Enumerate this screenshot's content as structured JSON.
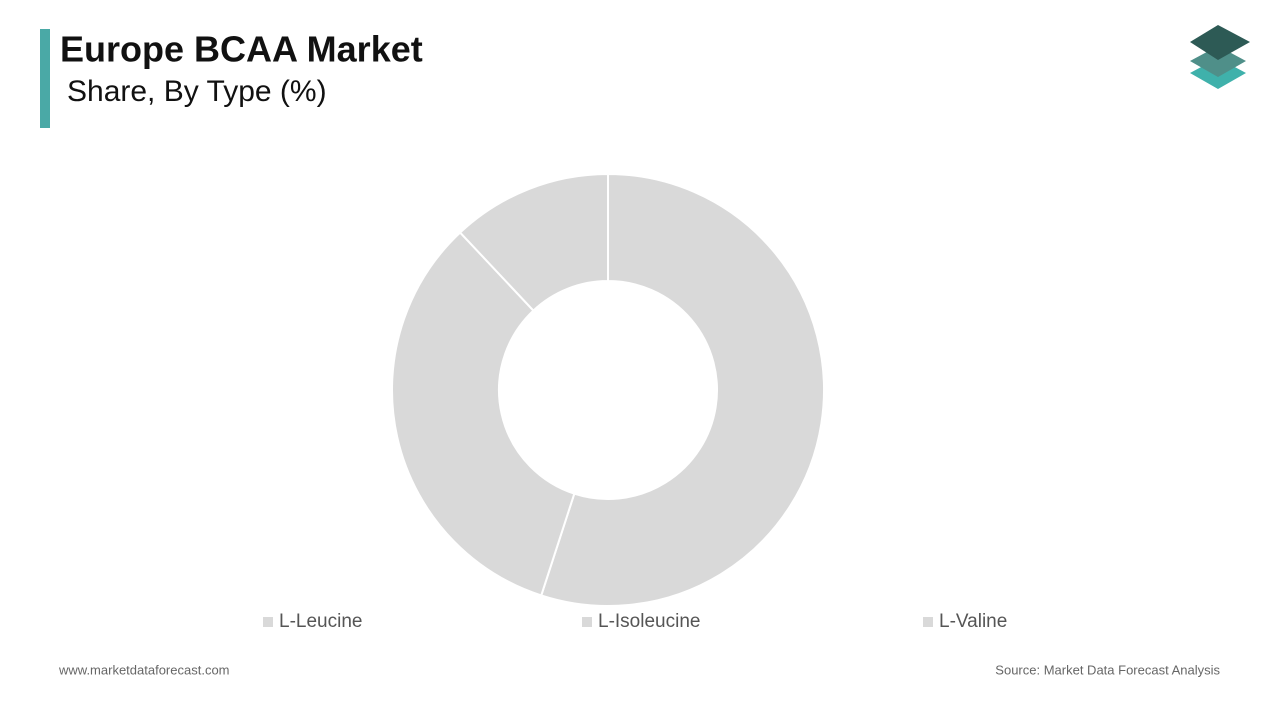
{
  "chart_data": {
    "type": "donut",
    "title": "Europe BCAA Market",
    "subtitle": "Share, By Type (%)",
    "categories": [
      "L-Leucine",
      "L-Isoleucine",
      "L-Valine"
    ],
    "values": [
      55,
      33,
      12
    ],
    "colors": [
      "#d9d9d9",
      "#d9d9d9",
      "#d9d9d9"
    ]
  },
  "footer": {
    "website": "www.marketdataforecast.com",
    "source": "Source: Market Data Forecast Analysis"
  }
}
